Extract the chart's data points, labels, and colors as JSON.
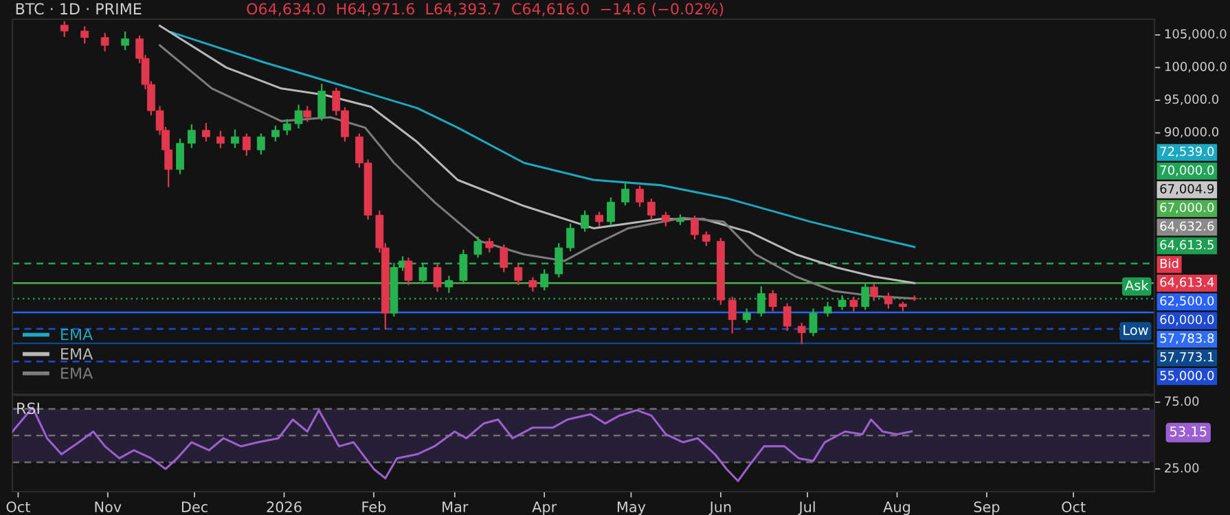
{
  "chart_data": [
    {
      "type": "candlestick",
      "title": "BTC · 1D · PRIME",
      "subtitle": "O64,634.0  H64,971.6  L64,393.7  C64,616.0  −14.6 (−0.02%)",
      "x": [
        "2025-10-17",
        "2025-10-24",
        "2025-10-31",
        "2025-11-07",
        "2025-11-12",
        "2025-11-14",
        "2025-11-16",
        "2025-11-19",
        "2025-11-21",
        "2025-11-22",
        "2025-11-26",
        "2025-11-30",
        "2025-12-05",
        "2025-12-10",
        "2025-12-15",
        "2025-12-19",
        "2025-12-24",
        "2025-12-29",
        "2026-01-02",
        "2026-01-06",
        "2026-01-09",
        "2026-01-14",
        "2026-01-19",
        "2026-01-22",
        "2026-01-27",
        "2026-01-30",
        "2026-02-03",
        "2026-02-05",
        "2026-02-08",
        "2026-02-11",
        "2026-02-13",
        "2026-02-18",
        "2026-02-23",
        "2026-02-27",
        "2026-03-04",
        "2026-03-09",
        "2026-03-13",
        "2026-03-18",
        "2026-03-23",
        "2026-03-28",
        "2026-04-01",
        "2026-04-06",
        "2026-04-10",
        "2026-04-15",
        "2026-04-20",
        "2026-04-24",
        "2026-04-29",
        "2026-05-04",
        "2026-05-08",
        "2026-05-13",
        "2026-05-18",
        "2026-05-23",
        "2026-05-27",
        "2026-06-01",
        "2026-06-05",
        "2026-06-10",
        "2026-06-15",
        "2026-06-19",
        "2026-06-24",
        "2026-06-29",
        "2026-07-03",
        "2026-07-08",
        "2026-07-13",
        "2026-07-17",
        "2026-07-21",
        "2026-07-24",
        "2026-07-29",
        "2026-08-03",
        "2026-08-07"
      ],
      "ohlc": [
        [
          106500,
          107000,
          104800,
          105600
        ],
        [
          105600,
          106200,
          103800,
          104600
        ],
        [
          104600,
          105200,
          102600,
          103400
        ],
        [
          103400,
          105400,
          102800,
          104400
        ],
        [
          104400,
          104800,
          100800,
          101400
        ],
        [
          101400,
          101800,
          96800,
          97400
        ],
        [
          97400,
          97800,
          92800,
          93400
        ],
        [
          93400,
          94000,
          89800,
          90400
        ],
        [
          90400,
          90800,
          86800,
          87400
        ],
        [
          87400,
          88000,
          81800,
          84400
        ],
        [
          84400,
          89000,
          83800,
          88400
        ],
        [
          88400,
          91200,
          87800,
          90400
        ],
        [
          90400,
          91400,
          88800,
          89400
        ],
        [
          89400,
          90200,
          87800,
          88400
        ],
        [
          88400,
          90400,
          87800,
          89400
        ],
        [
          89400,
          89800,
          86600,
          87400
        ],
        [
          87400,
          89800,
          86800,
          89400
        ],
        [
          89400,
          91000,
          88800,
          90400
        ],
        [
          90400,
          92000,
          89800,
          91400
        ],
        [
          91400,
          94200,
          90800,
          93400
        ],
        [
          93400,
          94000,
          91800,
          92400
        ],
        [
          92400,
          97400,
          92000,
          96400
        ],
        [
          96400,
          96800,
          92800,
          93400
        ],
        [
          93400,
          93800,
          88800,
          89400
        ],
        [
          89400,
          89800,
          84800,
          85400
        ],
        [
          85400,
          85800,
          76800,
          77400
        ],
        [
          77400,
          78000,
          71800,
          72400
        ],
        [
          72400,
          73000,
          60000,
          62400
        ],
        [
          62400,
          70000,
          62000,
          69400
        ],
        [
          69400,
          71000,
          69000,
          70400
        ],
        [
          70400,
          70800,
          66800,
          67400
        ],
        [
          67400,
          70000,
          67000,
          69400
        ],
        [
          69400,
          69800,
          65800,
          66400
        ],
        [
          66400,
          68000,
          65600,
          67400
        ],
        [
          67400,
          72000,
          67000,
          71400
        ],
        [
          71400,
          74000,
          71000,
          73400
        ],
        [
          73400,
          73800,
          71800,
          72400
        ],
        [
          72400,
          72800,
          68800,
          69400
        ],
        [
          69400,
          69800,
          66800,
          67400
        ],
        [
          67400,
          67800,
          65800,
          66400
        ],
        [
          66400,
          69000,
          66000,
          68400
        ],
        [
          68400,
          73000,
          68000,
          72400
        ],
        [
          72400,
          76000,
          72000,
          75400
        ],
        [
          75400,
          78000,
          75000,
          77400
        ],
        [
          77400,
          77800,
          75800,
          76400
        ],
        [
          76400,
          80000,
          76000,
          79400
        ],
        [
          79400,
          82400,
          79000,
          81400
        ],
        [
          81400,
          81800,
          78800,
          79400
        ],
        [
          79400,
          79800,
          76800,
          77400
        ],
        [
          77400,
          77800,
          75800,
          76400
        ],
        [
          76400,
          77400,
          76000,
          76800
        ],
        [
          76800,
          77200,
          73800,
          74400
        ],
        [
          74400,
          74800,
          72800,
          73400
        ],
        [
          73400,
          73800,
          63800,
          64400
        ],
        [
          64400,
          64800,
          59400,
          61400
        ],
        [
          61400,
          63000,
          61000,
          62400
        ],
        [
          62400,
          66400,
          62000,
          65400
        ],
        [
          65400,
          65800,
          62800,
          63400
        ],
        [
          63400,
          63800,
          59800,
          60400
        ],
        [
          60400,
          60800,
          57773.1,
          59400
        ],
        [
          59400,
          63000,
          59000,
          62400
        ],
        [
          62400,
          64000,
          62000,
          63400
        ],
        [
          63400,
          65000,
          63000,
          64400
        ],
        [
          64400,
          64800,
          62800,
          63400
        ],
        [
          63400,
          67000,
          63000,
          66400
        ],
        [
          66400,
          66800,
          64400,
          65000
        ],
        [
          65000,
          65400,
          63200,
          63800
        ],
        [
          63800,
          64000,
          62800,
          63400
        ],
        [
          64634.0,
          64971.6,
          64393.7,
          64616.0
        ]
      ],
      "colors": [
        "#e2384d",
        "#e2384d",
        "#e2384d",
        "#26b34f",
        "#e2384d",
        "#e2384d",
        "#e2384d",
        "#e2384d",
        "#e2384d",
        "#e2384d",
        "#26b34f",
        "#26b34f",
        "#e2384d",
        "#e2384d",
        "#26b34f",
        "#e2384d",
        "#26b34f",
        "#26b34f",
        "#26b34f",
        "#26b34f",
        "#e2384d",
        "#26b34f",
        "#e2384d",
        "#e2384d",
        "#e2384d",
        "#e2384d",
        "#e2384d",
        "#e2384d",
        "#26b34f",
        "#26b34f",
        "#e2384d",
        "#26b34f",
        "#e2384d",
        "#26b34f",
        "#26b34f",
        "#26b34f",
        "#e2384d",
        "#e2384d",
        "#e2384d",
        "#e2384d",
        "#26b34f",
        "#26b34f",
        "#26b34f",
        "#26b34f",
        "#e2384d",
        "#26b34f",
        "#26b34f",
        "#e2384d",
        "#e2384d",
        "#e2384d",
        "#26b34f",
        "#e2384d",
        "#e2384d",
        "#e2384d",
        "#e2384d",
        "#26b34f",
        "#26b34f",
        "#e2384d",
        "#e2384d",
        "#e2384d",
        "#26b34f",
        "#26b34f",
        "#26b34f",
        "#e2384d",
        "#26b34f",
        "#e2384d",
        "#e2384d",
        "#e2384d",
        "#e2384d"
      ],
      "series": [
        {
          "name": "EMA",
          "type": "line",
          "color": "#1ba8c0",
          "x": [
            "2025-11-23",
            "2025-12-25",
            "2026-01-23",
            "2026-02-16",
            "2026-03-02",
            "2026-03-25",
            "2026-04-18",
            "2026-05-11",
            "2026-06-03",
            "2026-07-02",
            "2026-07-24",
            "2026-08-07"
          ],
          "values": [
            105400,
            100800,
            97000,
            93800,
            90800,
            85400,
            82800,
            82000,
            80000,
            76400,
            74000,
            72539
          ]
        },
        {
          "name": "EMA",
          "type": "line",
          "color": "#b8b8b8",
          "x": [
            "2025-11-19",
            "2025-12-12",
            "2025-12-31",
            "2026-01-15",
            "2026-01-31",
            "2026-02-16",
            "2026-03-02",
            "2026-03-25",
            "2026-04-18",
            "2026-05-11",
            "2026-05-26",
            "2026-06-11",
            "2026-06-27",
            "2026-07-11",
            "2026-07-24",
            "2026-08-07"
          ],
          "values": [
            106400,
            100000,
            96800,
            95800,
            94000,
            88600,
            82800,
            78800,
            75400,
            76800,
            76800,
            74800,
            71400,
            69400,
            68000,
            67005
          ]
        },
        {
          "name": "EMA",
          "type": "line",
          "color": "#7c7c7c",
          "x": [
            "2025-11-19",
            "2025-12-07",
            "2025-12-31",
            "2026-01-17",
            "2026-01-29",
            "2026-02-08",
            "2026-02-22",
            "2026-03-10",
            "2026-03-25",
            "2026-04-08",
            "2026-04-18",
            "2026-04-30",
            "2026-05-19",
            "2026-06-02",
            "2026-06-13",
            "2026-06-27",
            "2026-07-10",
            "2026-07-24",
            "2026-08-07"
          ],
          "values": [
            103400,
            96800,
            91800,
            92400,
            90800,
            85400,
            79400,
            73400,
            71400,
            70400,
            72800,
            75400,
            77000,
            76400,
            71400,
            68000,
            65800,
            65000,
            64633
          ]
        }
      ],
      "ref_lines": [
        {
          "axis": "y",
          "value": 70000,
          "color": "#22a559",
          "line_style": "dashed"
        },
        {
          "axis": "y",
          "value": 67000,
          "color": "#4caf50",
          "line_style": "solid"
        },
        {
          "axis": "y",
          "value": 64613.5,
          "label": "Ask",
          "color": "#1e9e50",
          "line_style": "dotted"
        },
        {
          "axis": "y",
          "value": 62500,
          "color": "#2962ff",
          "line_style": "solid"
        },
        {
          "axis": "y",
          "value": 60000,
          "color": "#1e4bd2",
          "line_style": "dashed"
        },
        {
          "axis": "y",
          "value": 57773.1,
          "label": "Low",
          "color": "#0d4a8c",
          "line_style": "solid"
        },
        {
          "axis": "y",
          "value": 55000,
          "color": "#1e4bd2",
          "line_style": "dashed"
        }
      ],
      "annotations": [
        "72,539.0",
        "70,000.0",
        "67,004.9",
        "67,000.0",
        "64,632.6",
        "64,613.5",
        "Bid",
        "64,613.4",
        "62,500.0",
        "60,000.0",
        "57,783.8",
        "57,773.1",
        "55,000.0"
      ],
      "xlim": [
        "2025-09-29",
        "2026-10-29"
      ],
      "ylim": [
        50000,
        107400
      ],
      "yticks": [
        {
          "value": 90000,
          "label": "90,000.0"
        },
        {
          "value": 95000,
          "label": "95,000.0"
        },
        {
          "value": 100000,
          "label": "100,000.0"
        },
        {
          "value": 105000,
          "label": "105,000.0"
        }
      ],
      "tick_labels": "y",
      "legend": "bottom left"
    },
    {
      "type": "line",
      "series": [
        {
          "name": "RSI",
          "color": "#9c5fd0",
          "x": [
            "2025-09-29",
            "2025-10-06",
            "2025-10-11",
            "2025-10-16",
            "2025-10-22",
            "2025-10-27",
            "2025-10-31",
            "2025-11-05",
            "2025-11-10",
            "2025-11-16",
            "2025-11-21",
            "2025-11-25",
            "2025-11-30",
            "2025-12-06",
            "2025-12-11",
            "2025-12-17",
            "2025-12-23",
            "2025-12-30",
            "2026-01-04",
            "2026-01-09",
            "2026-01-13",
            "2026-01-20",
            "2026-01-25",
            "2026-02-01",
            "2026-02-05",
            "2026-02-09",
            "2026-02-16",
            "2026-02-22",
            "2026-03-01",
            "2026-03-05",
            "2026-03-11",
            "2026-03-16",
            "2026-03-21",
            "2026-03-28",
            "2026-04-04",
            "2026-04-09",
            "2026-04-17",
            "2026-04-22",
            "2026-04-27",
            "2026-05-03",
            "2026-05-08",
            "2026-05-13",
            "2026-05-19",
            "2026-05-24",
            "2026-05-30",
            "2026-06-03",
            "2026-06-07",
            "2026-06-11",
            "2026-06-16",
            "2026-06-23",
            "2026-06-28",
            "2026-07-03",
            "2026-07-07",
            "2026-07-14",
            "2026-07-20",
            "2026-07-23",
            "2026-07-27",
            "2026-08-01",
            "2026-08-06"
          ],
          "values": [
            53,
            71,
            48,
            36,
            45,
            53,
            42,
            33,
            39,
            33,
            25,
            33,
            45,
            39,
            48,
            42,
            45,
            48,
            62,
            53,
            69,
            42,
            45,
            25,
            18,
            33,
            36,
            42,
            53,
            48,
            59,
            62,
            48,
            56,
            56,
            62,
            66,
            59,
            65,
            69,
            65,
            51,
            45,
            48,
            36,
            25,
            16,
            28,
            42,
            42,
            33,
            31,
            45,
            53,
            51,
            62,
            53,
            51,
            53.15
          ]
        }
      ],
      "annotations": [
        "53.15"
      ],
      "ref_lines": [
        {
          "axis": "y",
          "value": 70,
          "color": "#6e6e6e",
          "line_style": "dashed"
        },
        {
          "axis": "y",
          "value": 50,
          "color": "#6e6e6e",
          "line_style": "dashed"
        },
        {
          "axis": "y",
          "value": 30,
          "color": "#6e6e6e",
          "line_style": "dashed"
        }
      ],
      "bands": [
        {
          "axis": "y",
          "from": 30,
          "to": 70,
          "color": "#261f36"
        }
      ],
      "xlim": [
        "2025-09-29",
        "2026-10-29"
      ],
      "ylim": [
        8,
        80
      ],
      "yticks": [
        {
          "value": 25,
          "label": "25.00"
        },
        {
          "value": 75,
          "label": "75.00"
        }
      ],
      "xticks": [
        {
          "value": "2025-10-01",
          "label": "Oct"
        },
        {
          "value": "2025-11-01",
          "label": "Nov"
        },
        {
          "value": "2025-12-01",
          "label": "Dec"
        },
        {
          "value": "2026-01-01",
          "label": "2026"
        },
        {
          "value": "2026-02-01",
          "label": "Feb"
        },
        {
          "value": "2026-03-01",
          "label": "Mar"
        },
        {
          "value": "2026-04-01",
          "label": "Apr"
        },
        {
          "value": "2026-05-01",
          "label": "May"
        },
        {
          "value": "2026-06-01",
          "label": "Jun"
        },
        {
          "value": "2026-07-01",
          "label": "Jul"
        },
        {
          "value": "2026-08-01",
          "label": "Aug"
        },
        {
          "value": "2026-09-01",
          "label": "Sep"
        },
        {
          "value": "2026-10-01",
          "label": "Oct"
        }
      ]
    }
  ]
}
